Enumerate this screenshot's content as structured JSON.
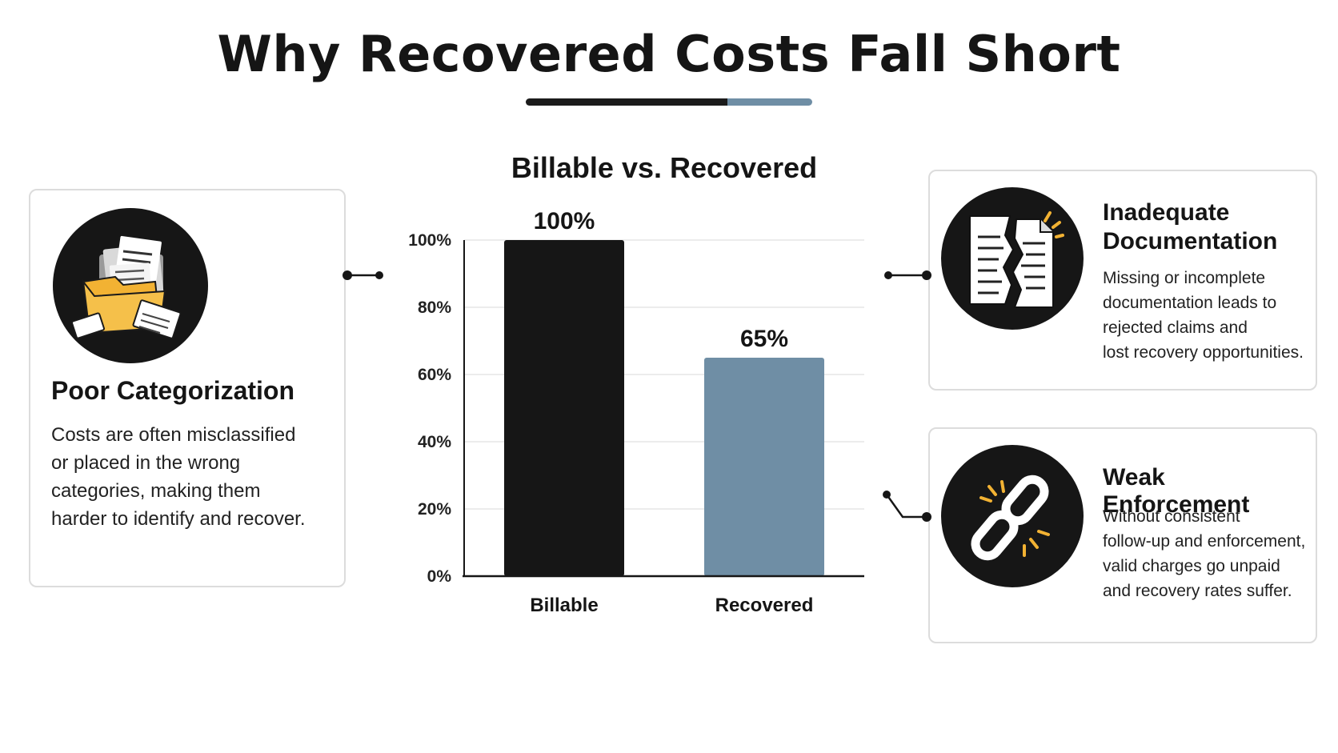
{
  "header": {
    "title": "Why Recovered Costs Fall Short"
  },
  "colors": {
    "billable": "#161616",
    "recovered": "#6f8ea5",
    "accent_yellow": "#f2b233"
  },
  "chart_data": {
    "type": "bar",
    "title": "Billable vs. Recovered",
    "categories": [
      "Billable",
      "Recovered"
    ],
    "values": [
      100,
      65
    ],
    "value_labels": [
      "100%",
      "65%"
    ],
    "yticks": [
      "0%",
      "20%",
      "40%",
      "60%",
      "80%",
      "100%"
    ],
    "ylim": [
      0,
      100
    ],
    "xlabel": "",
    "ylabel": "",
    "grid": true,
    "bar_colors": [
      "#161616",
      "#6f8ea5"
    ]
  },
  "cards": {
    "left": {
      "icon": "folder-documents-icon",
      "title": "Poor Categorization",
      "lines": [
        "Costs are often misclassified",
        "or placed in the wrong",
        "categories, making them",
        "harder to identify and recover."
      ]
    },
    "right_top": {
      "icon": "torn-document-icon",
      "title_lines": [
        "Inadequate",
        "Documentation"
      ],
      "lines": [
        "Missing or incomplete",
        "documentation leads to",
        "rejected claims and",
        "lost recovery opportunities."
      ]
    },
    "right_bottom": {
      "icon": "broken-chain-icon",
      "title": "Weak Enforcement",
      "lines": [
        "Without consistent",
        "follow-up and enforcement,",
        "valid charges go unpaid",
        "and recovery rates suffer."
      ]
    }
  }
}
